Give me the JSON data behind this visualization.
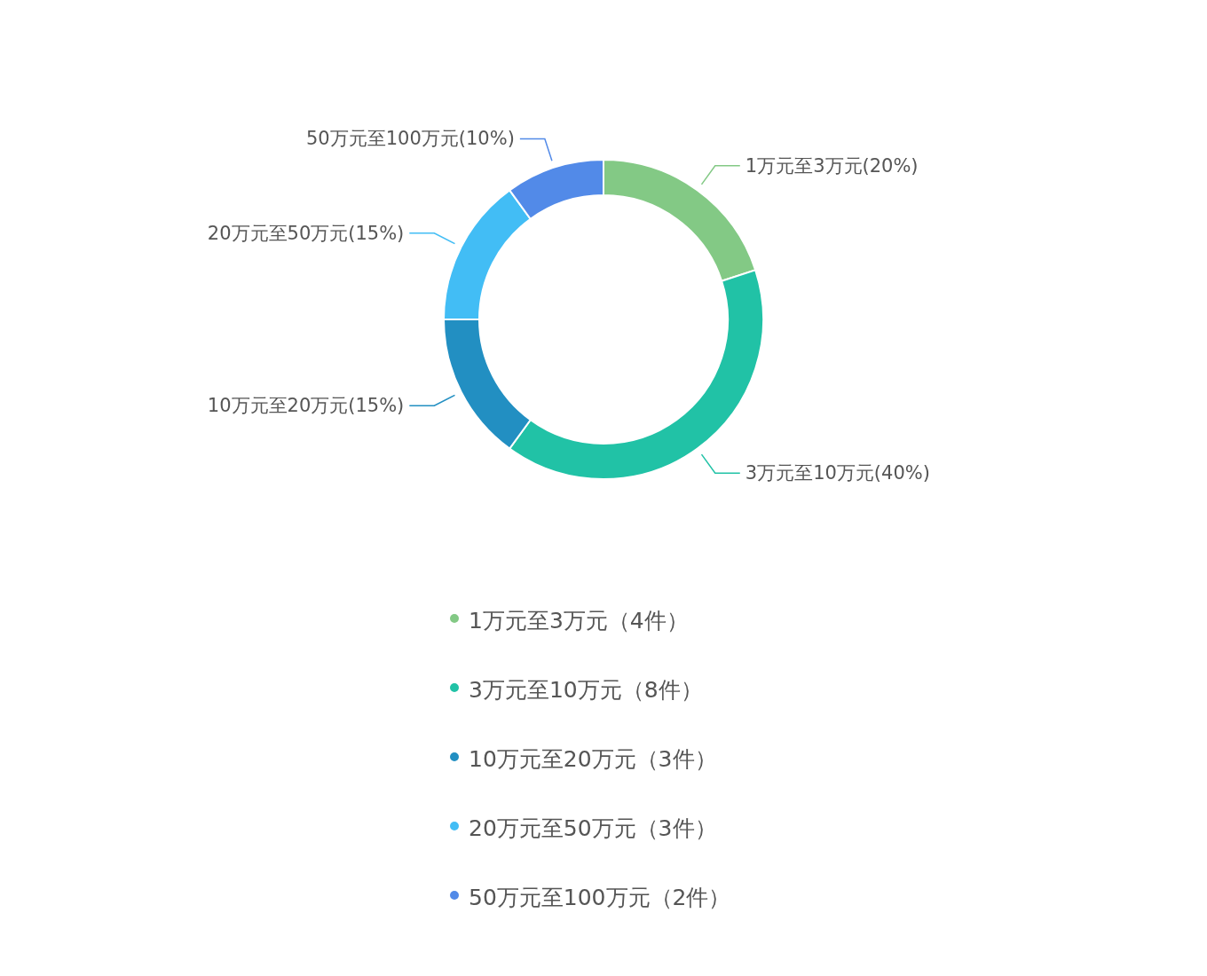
{
  "chart_data": {
    "type": "donut",
    "categories": [
      "1万元至3万元（4件）",
      "3万元至10万元（8件）",
      "10万元至20万元（3件）",
      "20万元至50万元（3件）",
      "50万元至100万元（2件）"
    ],
    "values": [
      20,
      40,
      15,
      15,
      10
    ],
    "value_labels": [
      "1万元至3万元(20%)",
      "3万元至10万元(40%)",
      "10万元至20万元(15%)",
      "20万元至50万元(15%)",
      "50万元至100万元(10%)"
    ],
    "colors": [
      "#83c985",
      "#21c2a6",
      "#228fc2",
      "#42bdf5",
      "#528ae8"
    ],
    "legend": "bottom"
  }
}
